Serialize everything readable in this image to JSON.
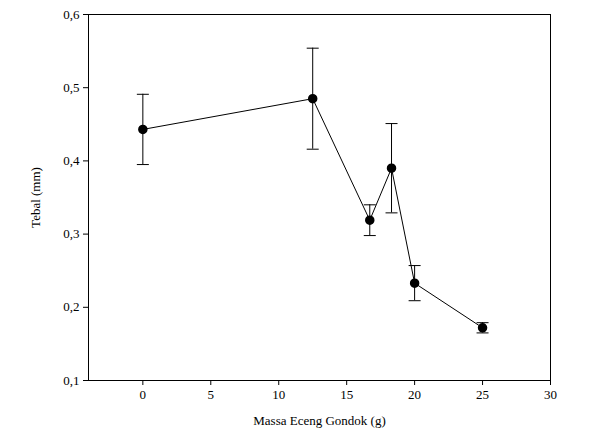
{
  "chart_data": {
    "type": "line",
    "x_label": "Massa Eceng Gondok (g)",
    "y_label": "Tebal (mm)",
    "x": [
      0,
      12.5,
      16.7,
      18.3,
      20,
      25
    ],
    "values": [
      0.443,
      0.485,
      0.319,
      0.39,
      0.233,
      0.172
    ],
    "errors": [
      0.048,
      0.069,
      0.021,
      0.061,
      0.024,
      0.007
    ],
    "color": "#000000",
    "marker": "circle",
    "xlim": [
      -4,
      30
    ],
    "xticks": [
      0,
      5,
      10,
      15,
      20,
      25,
      30
    ],
    "ylim": [
      0.1,
      0.6
    ],
    "yticks": [
      {
        "value": 0.1,
        "label": "0,1"
      },
      {
        "value": 0.2,
        "label": "0,2"
      },
      {
        "value": 0.3,
        "label": "0,3"
      },
      {
        "value": 0.4,
        "label": "0,4"
      },
      {
        "value": 0.5,
        "label": "0,5"
      },
      {
        "value": 0.6,
        "label": "0,6"
      }
    ],
    "grid": false
  }
}
